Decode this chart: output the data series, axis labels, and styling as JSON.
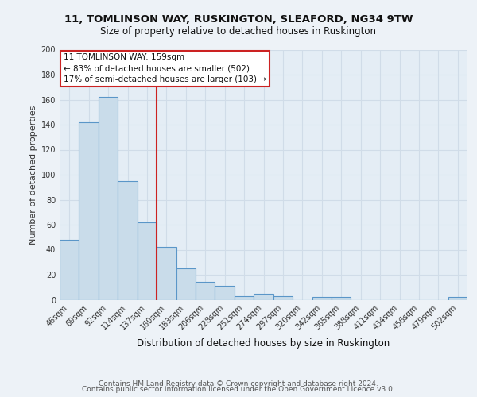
{
  "title1": "11, TOMLINSON WAY, RUSKINGTON, SLEAFORD, NG34 9TW",
  "title2": "Size of property relative to detached houses in Ruskington",
  "xlabel": "Distribution of detached houses by size in Ruskington",
  "ylabel": "Number of detached properties",
  "categories": [
    "46sqm",
    "69sqm",
    "92sqm",
    "114sqm",
    "137sqm",
    "160sqm",
    "183sqm",
    "206sqm",
    "228sqm",
    "251sqm",
    "274sqm",
    "297sqm",
    "320sqm",
    "342sqm",
    "365sqm",
    "388sqm",
    "411sqm",
    "434sqm",
    "456sqm",
    "479sqm",
    "502sqm"
  ],
  "values": [
    48,
    142,
    162,
    95,
    62,
    42,
    25,
    14,
    11,
    3,
    5,
    3,
    0,
    2,
    2,
    0,
    0,
    0,
    0,
    0,
    2
  ],
  "bar_color": "#c9dcea",
  "bar_edge_color": "#5a96c8",
  "annotation_line1": "11 TOMLINSON WAY: 159sqm",
  "annotation_line2": "← 83% of detached houses are smaller (502)",
  "annotation_line3": "17% of semi-detached houses are larger (103) →",
  "vline_x": 4.5,
  "vline_color": "#cc2222",
  "annotation_box_facecolor": "#ffffff",
  "annotation_box_edgecolor": "#cc2222",
  "footer1": "Contains HM Land Registry data © Crown copyright and database right 2024.",
  "footer2": "Contains public sector information licensed under the Open Government Licence v3.0.",
  "bg_color": "#edf2f7",
  "plot_bg_color": "#e4edf5",
  "grid_color": "#d0dce8",
  "ylim": [
    0,
    200
  ],
  "yticks": [
    0,
    20,
    40,
    60,
    80,
    100,
    120,
    140,
    160,
    180,
    200
  ],
  "title1_fontsize": 9.5,
  "title2_fontsize": 8.5,
  "ylabel_fontsize": 8,
  "xlabel_fontsize": 8.5,
  "tick_fontsize": 7,
  "footer_fontsize": 6.5,
  "annotation_fontsize": 7.5
}
